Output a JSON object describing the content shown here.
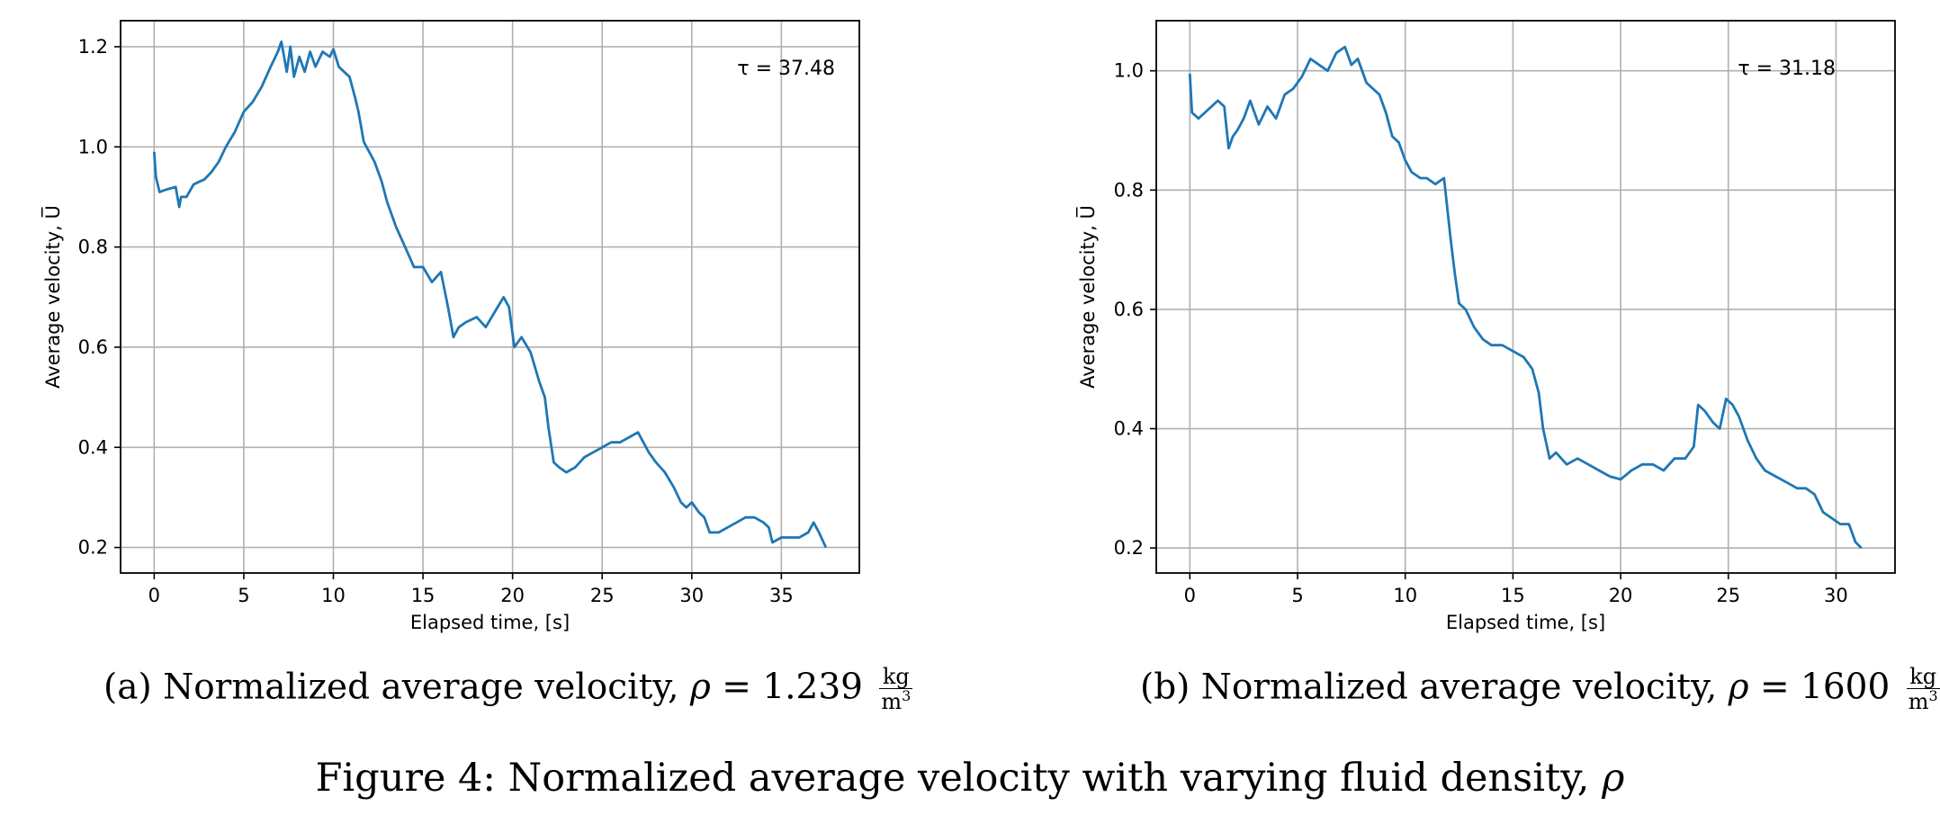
{
  "chart_data": [
    {
      "type": "line",
      "annotation": "τ = 37.48",
      "xlabel": "Elapsed time, [s]",
      "ylabel": "Average velocity, U̅",
      "xlim": [
        -1.875,
        39.35
      ],
      "ylim": [
        0.149,
        1.252
      ],
      "xticks": [
        "0",
        "5",
        "10",
        "15",
        "20",
        "25",
        "30",
        "35"
      ],
      "yticks": [
        "0.2",
        "0.4",
        "0.6",
        "0.8",
        "1.0",
        "1.2"
      ],
      "grid": true,
      "line_color": "#1f77b4",
      "x": [
        0,
        0.1,
        0.3,
        0.7,
        1.2,
        1.4,
        1.5,
        1.8,
        2.2,
        2.5,
        2.8,
        3.2,
        3.6,
        4.0,
        4.5,
        5.0,
        5.5,
        6.0,
        6.5,
        6.9,
        7.1,
        7.4,
        7.6,
        7.8,
        8.1,
        8.4,
        8.7,
        9.0,
        9.4,
        9.8,
        10.0,
        10.3,
        10.6,
        10.9,
        11.2,
        11.4,
        11.7,
        12.0,
        12.3,
        12.7,
        13.0,
        13.5,
        14.0,
        14.5,
        15.0,
        15.5,
        16.0,
        16.4,
        16.7,
        17.0,
        17.4,
        18.0,
        18.5,
        19.0,
        19.5,
        19.8,
        20.1,
        20.5,
        21.0,
        21.5,
        21.8,
        22.0,
        22.3,
        22.6,
        23.0,
        23.5,
        24.0,
        24.5,
        25.0,
        25.5,
        26.0,
        26.5,
        27.0,
        27.3,
        27.6,
        28.0,
        28.5,
        29.0,
        29.4,
        29.7,
        30.0,
        30.4,
        30.7,
        31.0,
        31.5,
        32.0,
        32.5,
        33.0,
        33.5,
        34.0,
        34.3,
        34.5,
        35.0,
        35.5,
        36.0,
        36.5,
        36.8,
        37.1,
        37.48
      ],
      "y": [
        0.99,
        0.94,
        0.91,
        0.915,
        0.92,
        0.88,
        0.9,
        0.9,
        0.925,
        0.93,
        0.935,
        0.95,
        0.97,
        1.0,
        1.03,
        1.07,
        1.09,
        1.12,
        1.16,
        1.19,
        1.21,
        1.15,
        1.2,
        1.14,
        1.18,
        1.15,
        1.19,
        1.16,
        1.19,
        1.18,
        1.195,
        1.16,
        1.15,
        1.14,
        1.1,
        1.07,
        1.01,
        0.99,
        0.97,
        0.93,
        0.89,
        0.84,
        0.8,
        0.76,
        0.76,
        0.73,
        0.75,
        0.68,
        0.62,
        0.64,
        0.65,
        0.66,
        0.64,
        0.67,
        0.7,
        0.68,
        0.6,
        0.62,
        0.59,
        0.53,
        0.5,
        0.44,
        0.37,
        0.36,
        0.35,
        0.36,
        0.38,
        0.39,
        0.4,
        0.41,
        0.41,
        0.42,
        0.43,
        0.41,
        0.39,
        0.37,
        0.35,
        0.32,
        0.29,
        0.28,
        0.29,
        0.27,
        0.26,
        0.23,
        0.23,
        0.24,
        0.25,
        0.26,
        0.26,
        0.25,
        0.24,
        0.21,
        0.22,
        0.22,
        0.22,
        0.23,
        0.25,
        0.23,
        0.2
      ]
    },
    {
      "type": "line",
      "annotation": "τ = 31.18",
      "xlabel": "Elapsed time, [s]",
      "ylabel": "Average velocity, U̅",
      "xlim": [
        -1.56,
        32.74
      ],
      "ylim": [
        0.158,
        1.084
      ],
      "xticks": [
        "0",
        "5",
        "10",
        "15",
        "20",
        "25",
        "30"
      ],
      "yticks": [
        "0.2",
        "0.4",
        "0.6",
        "0.8",
        "1.0"
      ],
      "grid": true,
      "line_color": "#1f77b4",
      "x": [
        0,
        0.1,
        0.4,
        0.7,
        1.0,
        1.3,
        1.6,
        1.8,
        2.0,
        2.2,
        2.5,
        2.8,
        3.2,
        3.6,
        4.0,
        4.4,
        4.8,
        5.2,
        5.6,
        6.0,
        6.4,
        6.8,
        7.2,
        7.5,
        7.8,
        8.2,
        8.5,
        8.8,
        9.1,
        9.4,
        9.7,
        10.0,
        10.3,
        10.7,
        11.0,
        11.4,
        11.8,
        12.1,
        12.3,
        12.5,
        12.8,
        13.2,
        13.6,
        14.0,
        14.5,
        15.0,
        15.5,
        15.9,
        16.2,
        16.4,
        16.7,
        17.0,
        17.5,
        18.0,
        18.5,
        19.0,
        19.5,
        20.0,
        20.5,
        21.0,
        21.5,
        22.0,
        22.5,
        23.0,
        23.4,
        23.6,
        23.9,
        24.3,
        24.6,
        24.9,
        25.2,
        25.5,
        25.9,
        26.3,
        26.7,
        27.2,
        27.7,
        28.2,
        28.6,
        29.0,
        29.4,
        29.8,
        30.2,
        30.6,
        30.9,
        31.18
      ],
      "y": [
        0.995,
        0.93,
        0.92,
        0.93,
        0.94,
        0.95,
        0.94,
        0.87,
        0.89,
        0.9,
        0.92,
        0.95,
        0.91,
        0.94,
        0.92,
        0.96,
        0.97,
        0.99,
        1.02,
        1.01,
        1.0,
        1.03,
        1.04,
        1.01,
        1.02,
        0.98,
        0.97,
        0.96,
        0.93,
        0.89,
        0.88,
        0.85,
        0.83,
        0.82,
        0.82,
        0.81,
        0.82,
        0.72,
        0.66,
        0.61,
        0.6,
        0.57,
        0.55,
        0.54,
        0.54,
        0.53,
        0.52,
        0.5,
        0.46,
        0.4,
        0.35,
        0.36,
        0.34,
        0.35,
        0.34,
        0.33,
        0.32,
        0.315,
        0.33,
        0.34,
        0.34,
        0.33,
        0.35,
        0.35,
        0.37,
        0.44,
        0.43,
        0.41,
        0.4,
        0.45,
        0.44,
        0.42,
        0.38,
        0.35,
        0.33,
        0.32,
        0.31,
        0.3,
        0.3,
        0.29,
        0.26,
        0.25,
        0.24,
        0.24,
        0.21,
        0.2
      ]
    }
  ],
  "captions": {
    "a": {
      "text": "(a) Normalized average velocity, ",
      "symbol": "ρ",
      "value": " = 1.239 ",
      "unit_num": "kg",
      "unit_den": "m",
      "unit_exp": "3"
    },
    "b": {
      "text": "(b) Normalized average velocity, ",
      "symbol": "ρ",
      "value": " = 1600 ",
      "unit_num": "kg",
      "unit_den": "m",
      "unit_exp": "3"
    },
    "figure": {
      "text": "Figure 4: Normalized average velocity with varying fluid density, ",
      "symbol": "ρ"
    }
  }
}
